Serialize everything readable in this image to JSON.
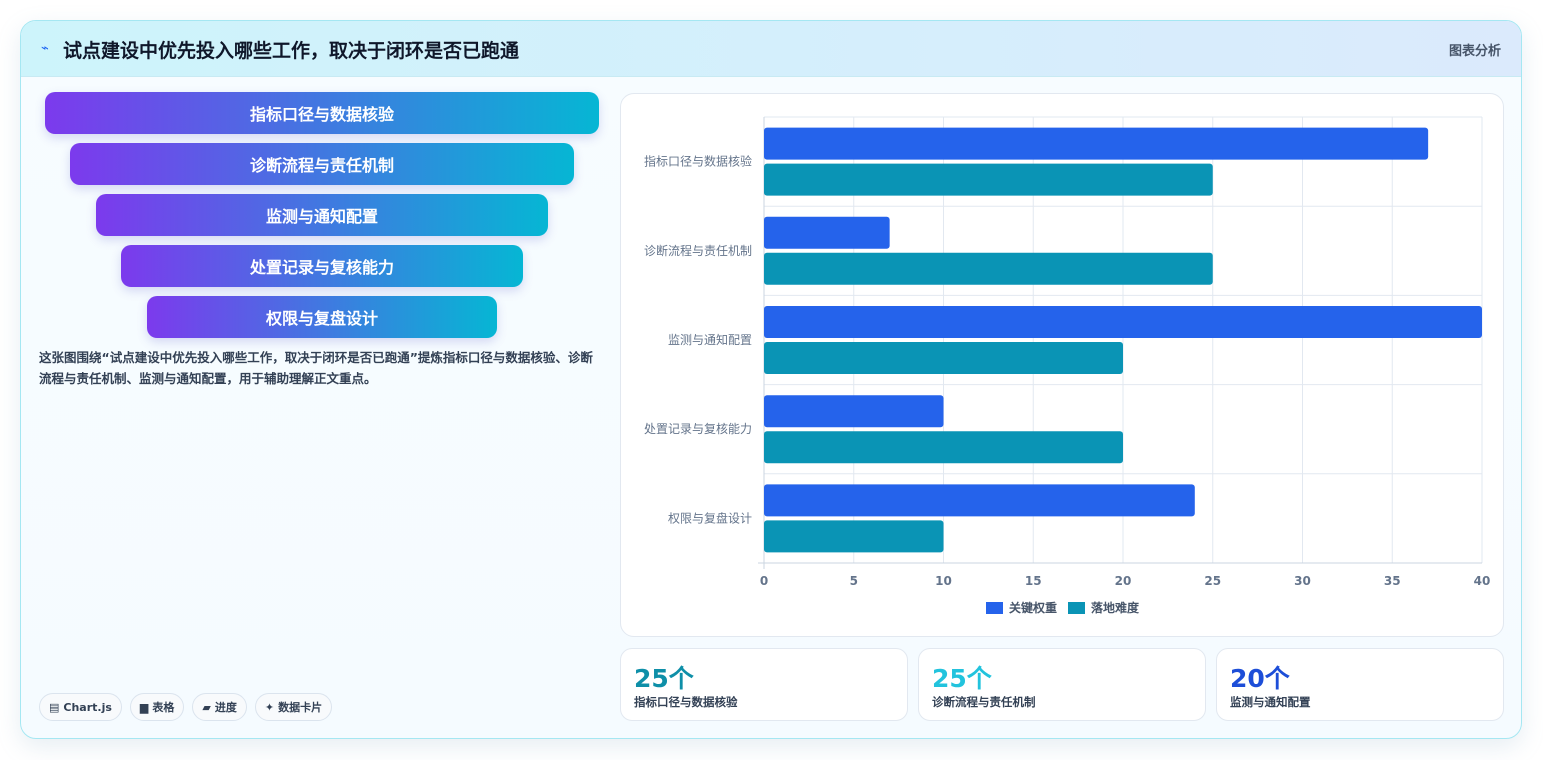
{
  "header": {
    "icon": "chart-line-icon",
    "title": "试点建设中优先投入哪些工作，取决于闭环是否已跑通",
    "tag": "图表分析"
  },
  "funnel": [
    "指标口径与数据核验",
    "诊断流程与责任机制",
    "监测与通知配置",
    "处置记录与复核能力",
    "权限与复盘设计"
  ],
  "description": "这张图围绕“试点建设中优先投入哪些工作，取决于闭环是否已跑通”提炼指标口径与数据核验、诊断流程与责任机制、监测与通知配置，用于辅助理解正文重点。",
  "chips": [
    {
      "icon": "chart-icon",
      "label": "Chart.js"
    },
    {
      "icon": "table-icon",
      "label": "表格"
    },
    {
      "icon": "progress-icon",
      "label": "进度"
    },
    {
      "icon": "sparkle-icon",
      "label": "数据卡片"
    }
  ],
  "colors": {
    "series1": "#2563eb",
    "series2": "#0a94b5",
    "grid": "#e2e8f0",
    "axis_text": "#64748b"
  },
  "chart_data": {
    "type": "bar",
    "orientation": "horizontal",
    "categories": [
      "指标口径与数据核验",
      "诊断流程与责任机制",
      "监测与通知配置",
      "处置记录与复核能力",
      "权限与复盘设计"
    ],
    "series": [
      {
        "name": "关键权重",
        "values": [
          37,
          7,
          40,
          10,
          24
        ]
      },
      {
        "name": "落地难度",
        "values": [
          25,
          25,
          20,
          20,
          10
        ]
      }
    ],
    "xlim": [
      0,
      40
    ],
    "xticks": [
      0,
      5,
      10,
      15,
      20,
      25,
      30,
      35,
      40
    ],
    "grid": true,
    "legend": "bottom"
  },
  "stats": [
    {
      "value": "25个",
      "label": "指标口径与数据核验",
      "color": "#0e8fa8"
    },
    {
      "value": "25个",
      "label": "诊断流程与责任机制",
      "color": "#22c3dd"
    },
    {
      "value": "20个",
      "label": "监测与通知配置",
      "color": "#1d4ed8"
    }
  ]
}
